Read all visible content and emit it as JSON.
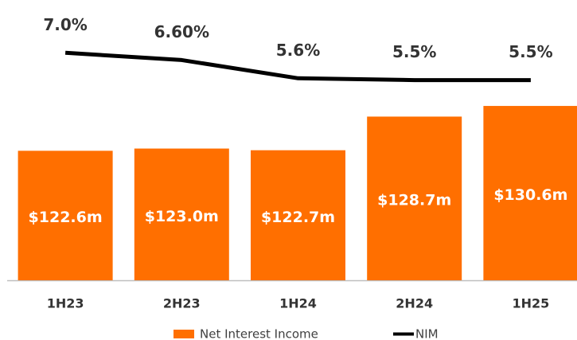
{
  "chart_data": {
    "type": "bar-line",
    "categories": [
      "1H23",
      "2H23",
      "1H24",
      "2H24",
      "1H25"
    ],
    "series": [
      {
        "name": "Net Interest Income",
        "type": "bar",
        "color": "#ff6f00",
        "values": [
          122.6,
          123.0,
          122.7,
          128.7,
          130.6
        ],
        "value_labels": [
          "$122.6m",
          "$123.0m",
          "$122.7m",
          "$128.7m",
          "$130.6m"
        ]
      },
      {
        "name": "NIM",
        "type": "line",
        "axis": "y2",
        "color": "#000000",
        "values": [
          7.0,
          6.6,
          5.6,
          5.5,
          5.5
        ],
        "value_labels": [
          "7.0%",
          "6.60%",
          "5.6%",
          "5.5%",
          "5.5%"
        ]
      }
    ],
    "ylim": [
      99.5,
      149.5
    ],
    "y2lim": [
      -5.5,
      9.9
    ],
    "legend": "bottom"
  }
}
